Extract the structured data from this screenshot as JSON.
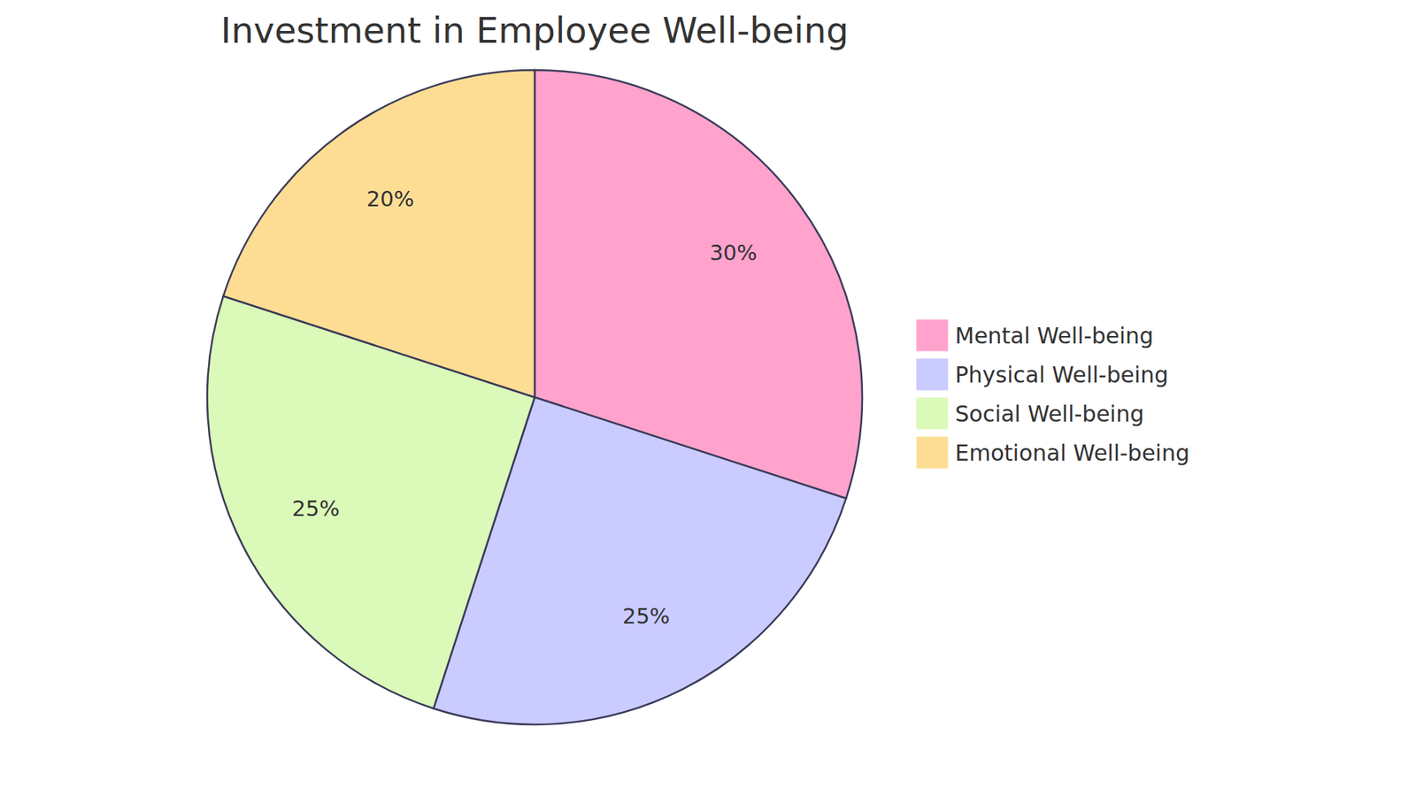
{
  "chart_data": {
    "type": "pie",
    "title": "Investment in Employee Well-being",
    "categories": [
      "Mental Well-being",
      "Physical Well-being",
      "Social Well-being",
      "Emotional Well-being"
    ],
    "values": [
      30,
      25,
      25,
      20
    ],
    "value_labels": [
      "30%",
      "25%",
      "25%",
      "20%"
    ],
    "colors": [
      "#FFA3CD",
      "#CACBFF",
      "#DBF9B8",
      "#FDDD93"
    ],
    "data_labels": true,
    "legend": "right"
  }
}
